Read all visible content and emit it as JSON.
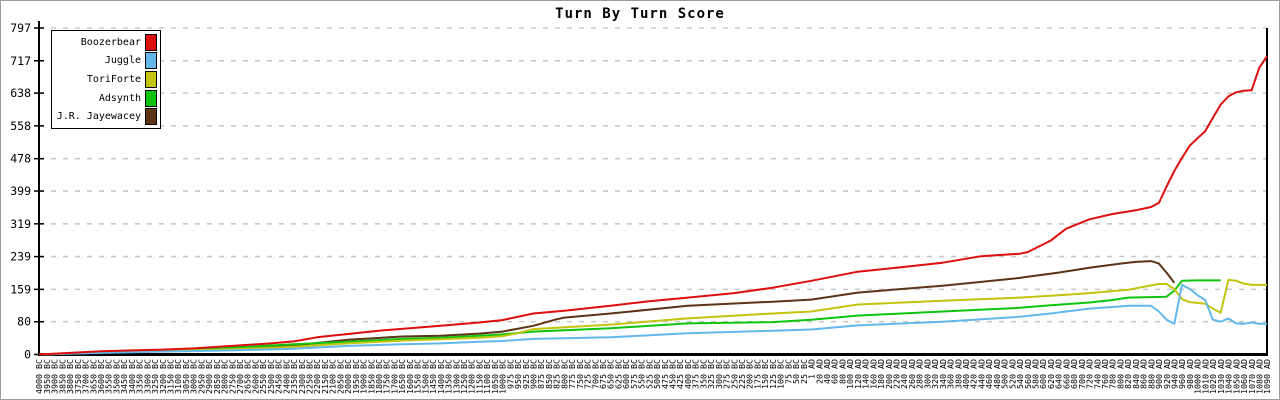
{
  "title": "Turn By Turn Score",
  "colors": {
    "background": "#ffffff",
    "frame": "#9a9a9a",
    "axis": "#000000",
    "grid": "#c8c8c8",
    "text": "#000000"
  },
  "chart_data": {
    "type": "line",
    "title": "Turn By Turn Score",
    "ylim": [
      0,
      797
    ],
    "y_ticks": [
      0,
      80,
      159,
      239,
      319,
      399,
      478,
      558,
      638,
      717,
      797
    ],
    "grid": "horizontal-dashed",
    "legend_position": "upper-left",
    "x_labels": [
      "4000 BC",
      "3950 BC",
      "3900 BC",
      "3850 BC",
      "3800 BC",
      "3750 BC",
      "3700 BC",
      "3650 BC",
      "3600 BC",
      "3550 BC",
      "3500 BC",
      "3450 BC",
      "3400 BC",
      "3350 BC",
      "3300 BC",
      "3250 BC",
      "3200 BC",
      "3150 BC",
      "3100 BC",
      "3050 BC",
      "3000 BC",
      "2950 BC",
      "2900 BC",
      "2850 BC",
      "2800 BC",
      "2750 BC",
      "2700 BC",
      "2650 BC",
      "2600 BC",
      "2550 BC",
      "2500 BC",
      "2450 BC",
      "2400 BC",
      "2350 BC",
      "2300 BC",
      "2250 BC",
      "2200 BC",
      "2150 BC",
      "2100 BC",
      "2050 BC",
      "2000 BC",
      "1950 BC",
      "1900 BC",
      "1850 BC",
      "1800 BC",
      "1750 BC",
      "1700 BC",
      "1650 BC",
      "1600 BC",
      "1550 BC",
      "1500 BC",
      "1450 BC",
      "1400 BC",
      "1350 BC",
      "1300 BC",
      "1250 BC",
      "1200 BC",
      "1150 BC",
      "1100 BC",
      "1050 BC",
      "1000 BC",
      "975 BC",
      "950 BC",
      "925 BC",
      "900 BC",
      "875 BC",
      "850 BC",
      "825 BC",
      "800 BC",
      "775 BC",
      "750 BC",
      "725 BC",
      "700 BC",
      "675 BC",
      "650 BC",
      "625 BC",
      "600 BC",
      "575 BC",
      "550 BC",
      "525 BC",
      "500 BC",
      "475 BC",
      "450 BC",
      "425 BC",
      "400 BC",
      "375 BC",
      "350 BC",
      "325 BC",
      "300 BC",
      "275 BC",
      "250 BC",
      "225 BC",
      "200 BC",
      "175 BC",
      "150 BC",
      "125 BC",
      "100 BC",
      "75 BC",
      "50 BC",
      "25 BC",
      "1 AD",
      "20 AD",
      "40 AD",
      "60 AD",
      "80 AD",
      "100 AD",
      "120 AD",
      "140 AD",
      "160 AD",
      "180 AD",
      "200 AD",
      "220 AD",
      "240 AD",
      "260 AD",
      "280 AD",
      "300 AD",
      "320 AD",
      "340 AD",
      "360 AD",
      "380 AD",
      "400 AD",
      "420 AD",
      "440 AD",
      "460 AD",
      "480 AD",
      "500 AD",
      "520 AD",
      "540 AD",
      "560 AD",
      "580 AD",
      "600 AD",
      "620 AD",
      "640 AD",
      "660 AD",
      "680 AD",
      "700 AD",
      "720 AD",
      "740 AD",
      "760 AD",
      "780 AD",
      "800 AD",
      "820 AD",
      "840 AD",
      "860 AD",
      "880 AD",
      "900 AD",
      "920 AD",
      "940 AD",
      "960 AD",
      "980 AD",
      "1000 AD",
      "1010 AD",
      "1020 AD",
      "1030 AD",
      "1040 AD",
      "1050 AD",
      "1060 AD",
      "1070 AD",
      "1080 AD",
      "1090 AD"
    ],
    "series": [
      {
        "name": "J.R. Jayewacey",
        "color": "#5c3317",
        "points": [
          [
            0,
            0
          ],
          [
            8,
            6
          ],
          [
            16,
            10
          ],
          [
            25,
            15
          ],
          [
            33,
            22
          ],
          [
            40,
            36
          ],
          [
            47,
            44
          ],
          [
            52,
            46
          ],
          [
            57,
            51
          ],
          [
            60,
            56
          ],
          [
            64,
            70
          ],
          [
            67,
            86
          ],
          [
            68,
            90
          ],
          [
            74,
            100
          ],
          [
            84,
            119
          ],
          [
            95,
            129
          ],
          [
            100,
            134
          ],
          [
            106,
            151
          ],
          [
            117,
            168
          ],
          [
            127,
            187
          ],
          [
            128,
            190
          ],
          [
            132,
            200
          ],
          [
            136,
            212
          ],
          [
            140,
            222
          ],
          [
            142,
            226
          ],
          [
            144,
            228
          ],
          [
            145,
            222
          ],
          [
            146,
            200
          ],
          [
            147,
            175
          ]
        ]
      },
      {
        "name": "Adsynth",
        "color": "#0ec40e",
        "points": [
          [
            0,
            0
          ],
          [
            8,
            5
          ],
          [
            16,
            10
          ],
          [
            25,
            17
          ],
          [
            33,
            25
          ],
          [
            40,
            31
          ],
          [
            47,
            38
          ],
          [
            52,
            41
          ],
          [
            57,
            46
          ],
          [
            60,
            49
          ],
          [
            64,
            56
          ],
          [
            74,
            64
          ],
          [
            84,
            76
          ],
          [
            95,
            79
          ],
          [
            100,
            85
          ],
          [
            106,
            95
          ],
          [
            117,
            105
          ],
          [
            127,
            114
          ],
          [
            131,
            120
          ],
          [
            136,
            127
          ],
          [
            139,
            133
          ],
          [
            141,
            139
          ],
          [
            144,
            140
          ],
          [
            146,
            141
          ],
          [
            147,
            156
          ],
          [
            148,
            180
          ],
          [
            150,
            181
          ],
          [
            153,
            181
          ]
        ]
      },
      {
        "name": "ToriForte",
        "color": "#c2c40e",
        "points": [
          [
            0,
            0
          ],
          [
            8,
            5
          ],
          [
            16,
            8
          ],
          [
            25,
            13
          ],
          [
            33,
            19
          ],
          [
            40,
            27
          ],
          [
            47,
            34
          ],
          [
            52,
            37
          ],
          [
            57,
            41
          ],
          [
            60,
            45
          ],
          [
            62,
            52
          ],
          [
            64,
            62
          ],
          [
            74,
            73
          ],
          [
            84,
            88
          ],
          [
            95,
            100
          ],
          [
            100,
            105
          ],
          [
            106,
            122
          ],
          [
            117,
            131
          ],
          [
            127,
            139
          ],
          [
            133,
            146
          ],
          [
            136,
            150
          ],
          [
            141,
            158
          ],
          [
            143,
            165
          ],
          [
            145,
            172
          ],
          [
            146,
            172
          ],
          [
            147,
            160
          ],
          [
            148,
            135
          ],
          [
            149,
            128
          ],
          [
            150,
            126
          ],
          [
            151,
            124
          ],
          [
            152,
            112
          ],
          [
            153,
            102
          ],
          [
            154,
            182
          ],
          [
            155,
            180
          ],
          [
            156,
            173
          ],
          [
            157,
            170
          ],
          [
            159,
            170
          ]
        ]
      },
      {
        "name": "Juggle",
        "color": "#63b8ea",
        "points": [
          [
            0,
            0
          ],
          [
            8,
            4
          ],
          [
            16,
            7
          ],
          [
            25,
            10
          ],
          [
            33,
            14
          ],
          [
            40,
            21
          ],
          [
            47,
            25
          ],
          [
            52,
            27
          ],
          [
            57,
            31
          ],
          [
            60,
            33
          ],
          [
            64,
            38
          ],
          [
            74,
            42
          ],
          [
            84,
            52
          ],
          [
            95,
            58
          ],
          [
            100,
            61
          ],
          [
            106,
            71
          ],
          [
            117,
            80
          ],
          [
            127,
            92
          ],
          [
            131,
            100
          ],
          [
            133,
            105
          ],
          [
            136,
            112
          ],
          [
            139,
            116
          ],
          [
            141,
            119
          ],
          [
            144,
            119
          ],
          [
            145,
            105
          ],
          [
            146,
            85
          ],
          [
            147,
            75
          ],
          [
            148,
            170
          ],
          [
            149,
            160
          ],
          [
            150,
            145
          ],
          [
            151,
            133
          ],
          [
            152,
            85
          ],
          [
            153,
            80
          ],
          [
            154,
            88
          ],
          [
            155,
            76
          ],
          [
            156,
            75
          ],
          [
            157,
            78
          ],
          [
            158,
            75
          ],
          [
            159,
            75
          ]
        ]
      },
      {
        "name": "Boozerbear",
        "color": "#dd0e0e",
        "points": [
          [
            0,
            0
          ],
          [
            4,
            4
          ],
          [
            8,
            8
          ],
          [
            12,
            10
          ],
          [
            16,
            12
          ],
          [
            20,
            15
          ],
          [
            25,
            21
          ],
          [
            30,
            27
          ],
          [
            33,
            32
          ],
          [
            36,
            42
          ],
          [
            40,
            50
          ],
          [
            44,
            58
          ],
          [
            48,
            64
          ],
          [
            52,
            70
          ],
          [
            57,
            78
          ],
          [
            60,
            84
          ],
          [
            64,
            100
          ],
          [
            68,
            107
          ],
          [
            74,
            119
          ],
          [
            79,
            130
          ],
          [
            84,
            139
          ],
          [
            90,
            150
          ],
          [
            95,
            163
          ],
          [
            100,
            180
          ],
          [
            106,
            202
          ],
          [
            111,
            212
          ],
          [
            117,
            224
          ],
          [
            122,
            240
          ],
          [
            127,
            246
          ],
          [
            128,
            250
          ],
          [
            131,
            278
          ],
          [
            133,
            307
          ],
          [
            136,
            330
          ],
          [
            139,
            343
          ],
          [
            142,
            352
          ],
          [
            144,
            360
          ],
          [
            145,
            370
          ],
          [
            146,
            410
          ],
          [
            147,
            448
          ],
          [
            148,
            480
          ],
          [
            149,
            510
          ],
          [
            150,
            528
          ],
          [
            151,
            545
          ],
          [
            152,
            578
          ],
          [
            153,
            610
          ],
          [
            154,
            630
          ],
          [
            155,
            640
          ],
          [
            156,
            644
          ],
          [
            157,
            645
          ],
          [
            158,
            700
          ],
          [
            159,
            728
          ]
        ]
      }
    ],
    "legend_order": [
      "Boozerbear",
      "Juggle",
      "ToriForte",
      "Adsynth",
      "J.R. Jayewacey"
    ]
  }
}
